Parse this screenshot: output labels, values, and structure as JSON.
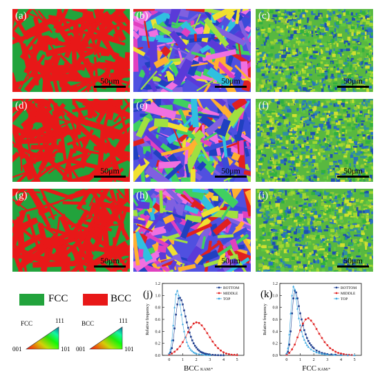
{
  "panels": [
    {
      "label": "(a)",
      "type": "phase",
      "scale": "50μm"
    },
    {
      "label": "(b)",
      "type": "ipf",
      "scale": "50μm"
    },
    {
      "label": "(c)",
      "type": "kam",
      "scale": "50μm"
    },
    {
      "label": "(d)",
      "type": "phase",
      "scale": "50μm"
    },
    {
      "label": "(e)",
      "type": "ipf",
      "scale": "50μm"
    },
    {
      "label": "(f)",
      "type": "kam",
      "scale": "50μm"
    },
    {
      "label": "(g)",
      "type": "phase",
      "scale": "50μm"
    },
    {
      "label": "(h)",
      "type": "ipf",
      "scale": "50μm"
    },
    {
      "label": "(i)",
      "type": "kam",
      "scale": "50μm"
    }
  ],
  "phase_legend": {
    "fcc": {
      "label": "FCC",
      "color": "#22a33c"
    },
    "bcc": {
      "label": "BCC",
      "color": "#e81818"
    }
  },
  "ipf_legend": [
    {
      "phase": "FCC",
      "top": "111",
      "left": "001",
      "right": "101"
    },
    {
      "phase": "BCC",
      "top": "111",
      "left": "001",
      "right": "101"
    }
  ],
  "colors": {
    "bottom": "#1f3f8f",
    "middle": "#e02020",
    "top": "#3aa6e0"
  },
  "chart_data": [
    {
      "type": "line",
      "panel_label": "(j)",
      "xlabel": "BCC",
      "xlabel_unit": "KAM/°",
      "ylabel": "Relative frequency",
      "xlim": [
        -0.5,
        5.5
      ],
      "ylim": [
        0,
        1.2
      ],
      "xticks": [
        0,
        1,
        2,
        3,
        4,
        5
      ],
      "yticks": [
        0,
        0.2,
        0.4,
        0.6,
        0.8,
        1.0,
        1.2
      ],
      "legend_position": "top-right",
      "series": [
        {
          "name": "BOTTOM",
          "color": "#1f3f8f",
          "x": [
            0,
            0.1,
            0.2,
            0.3,
            0.4,
            0.5,
            0.6,
            0.7,
            0.8,
            0.9,
            1.0,
            1.1,
            1.2,
            1.3,
            1.4,
            1.5,
            1.6,
            1.7,
            1.8,
            1.9,
            2.0,
            2.1,
            2.2,
            2.3,
            2.4,
            2.5,
            2.6,
            2.7,
            2.8,
            2.9,
            3.0,
            3.2,
            3.4,
            3.6,
            3.8,
            4.0
          ],
          "y": [
            0.02,
            0.05,
            0.12,
            0.25,
            0.45,
            0.68,
            0.85,
            0.95,
            0.96,
            0.92,
            0.85,
            0.75,
            0.65,
            0.55,
            0.46,
            0.38,
            0.31,
            0.25,
            0.2,
            0.16,
            0.13,
            0.1,
            0.08,
            0.06,
            0.05,
            0.04,
            0.03,
            0.025,
            0.02,
            0.015,
            0.01,
            0.008,
            0.005,
            0.003,
            0.002,
            0.001
          ]
        },
        {
          "name": "MIDDLE",
          "color": "#e02020",
          "x": [
            0,
            0.2,
            0.4,
            0.6,
            0.8,
            1.0,
            1.2,
            1.4,
            1.6,
            1.8,
            2.0,
            2.2,
            2.4,
            2.6,
            2.8,
            3.0,
            3.2,
            3.4,
            3.6,
            3.8,
            4.0,
            4.2,
            4.4,
            4.6,
            4.8,
            5.0
          ],
          "y": [
            0.01,
            0.03,
            0.06,
            0.1,
            0.15,
            0.22,
            0.3,
            0.39,
            0.47,
            0.53,
            0.55,
            0.54,
            0.5,
            0.44,
            0.37,
            0.3,
            0.23,
            0.17,
            0.12,
            0.08,
            0.05,
            0.03,
            0.02,
            0.01,
            0.008,
            0.005
          ]
        },
        {
          "name": "TOP",
          "color": "#3aa6e0",
          "x": [
            0,
            0.1,
            0.2,
            0.3,
            0.4,
            0.5,
            0.6,
            0.7,
            0.8,
            0.9,
            1.0,
            1.1,
            1.2,
            1.3,
            1.4,
            1.5,
            1.6,
            1.7,
            1.8,
            1.9,
            2.0,
            2.2,
            2.4,
            2.6,
            2.8,
            3.0
          ],
          "y": [
            0.03,
            0.1,
            0.25,
            0.5,
            0.8,
            1.02,
            1.08,
            1.0,
            0.85,
            0.68,
            0.52,
            0.4,
            0.3,
            0.22,
            0.16,
            0.12,
            0.09,
            0.07,
            0.05,
            0.04,
            0.03,
            0.02,
            0.015,
            0.01,
            0.005,
            0.003
          ]
        }
      ]
    },
    {
      "type": "line",
      "panel_label": "(k)",
      "xlabel": "FCC",
      "xlabel_unit": "KAM/°",
      "ylabel": "Relative frequency",
      "xlim": [
        -0.5,
        5.5
      ],
      "ylim": [
        0,
        1.2
      ],
      "xticks": [
        0,
        1,
        2,
        3,
        4,
        5
      ],
      "yticks": [
        0,
        0.2,
        0.4,
        0.6,
        0.8,
        1.0,
        1.2
      ],
      "legend_position": "top-right",
      "series": [
        {
          "name": "BOTTOM",
          "color": "#1f3f8f",
          "x": [
            0,
            0.1,
            0.2,
            0.3,
            0.4,
            0.5,
            0.6,
            0.7,
            0.8,
            0.9,
            1.0,
            1.1,
            1.2,
            1.3,
            1.4,
            1.5,
            1.6,
            1.7,
            1.8,
            1.9,
            2.0,
            2.2,
            2.4,
            2.6,
            2.8,
            3.0,
            3.3,
            3.6,
            4.0,
            4.5
          ],
          "y": [
            0.02,
            0.06,
            0.18,
            0.4,
            0.7,
            0.95,
            1.08,
            1.05,
            0.95,
            0.82,
            0.7,
            0.6,
            0.5,
            0.42,
            0.35,
            0.29,
            0.24,
            0.2,
            0.17,
            0.14,
            0.12,
            0.08,
            0.06,
            0.04,
            0.03,
            0.02,
            0.015,
            0.01,
            0.005,
            0.002
          ]
        },
        {
          "name": "MIDDLE",
          "color": "#e02020",
          "x": [
            0,
            0.2,
            0.4,
            0.6,
            0.8,
            1.0,
            1.2,
            1.4,
            1.6,
            1.8,
            2.0,
            2.2,
            2.4,
            2.6,
            2.8,
            3.0,
            3.2,
            3.4,
            3.6,
            3.8,
            4.0,
            4.2,
            4.4,
            4.6,
            4.8
          ],
          "y": [
            0.01,
            0.04,
            0.1,
            0.18,
            0.3,
            0.42,
            0.53,
            0.6,
            0.62,
            0.58,
            0.52,
            0.44,
            0.36,
            0.29,
            0.22,
            0.17,
            0.12,
            0.09,
            0.06,
            0.04,
            0.03,
            0.02,
            0.01,
            0.008,
            0.005
          ]
        },
        {
          "name": "TOP",
          "color": "#3aa6e0",
          "x": [
            0,
            0.1,
            0.2,
            0.3,
            0.4,
            0.5,
            0.6,
            0.7,
            0.8,
            0.9,
            1.0,
            1.1,
            1.2,
            1.3,
            1.4,
            1.5,
            1.6,
            1.8,
            2.0,
            2.2,
            2.4,
            2.6,
            2.8,
            3.0,
            3.5,
            4.0,
            4.5,
            5.0
          ],
          "y": [
            0.03,
            0.12,
            0.35,
            0.7,
            1.0,
            1.15,
            1.1,
            0.95,
            0.78,
            0.62,
            0.5,
            0.4,
            0.32,
            0.26,
            0.21,
            0.17,
            0.14,
            0.1,
            0.07,
            0.05,
            0.035,
            0.025,
            0.018,
            0.012,
            0.006,
            0.003,
            0.002,
            0.001
          ]
        }
      ]
    }
  ]
}
